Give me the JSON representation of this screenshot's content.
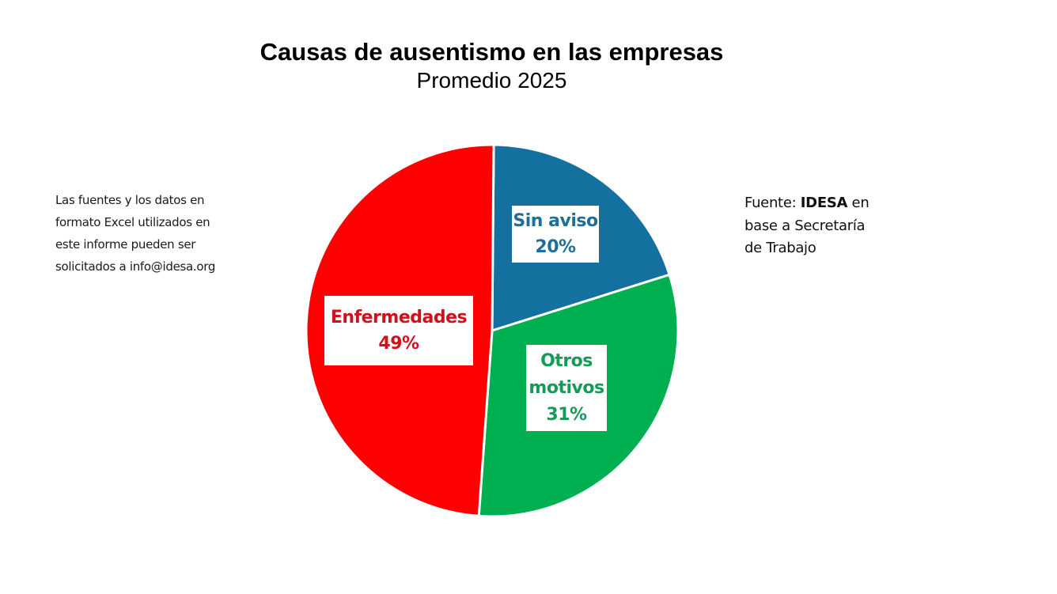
{
  "header": {
    "title": "Causas de ausentismo en las empresas",
    "subtitle": "Promedio 2025"
  },
  "note": {
    "lines": [
      "Las fuentes y los datos en",
      "formato Excel utilizados en",
      "este informe pueden ser",
      "solicitados a info@idesa.org"
    ]
  },
  "source": {
    "prefix": "Fuente: ",
    "brand": "IDESA",
    "suffix": " en",
    "line2": "base a Secretaría",
    "line3": "de Trabajo"
  },
  "labels": {
    "enfermedades": {
      "line1": "Enfermedades",
      "line2": "49%",
      "color": "#D0111B"
    },
    "sin_aviso": {
      "line1": "Sin aviso",
      "line2": "20%",
      "color": "#1F6E98"
    },
    "otros": {
      "line1": "Otros",
      "line2": "motivos",
      "line3": "31%",
      "color": "#169A58"
    }
  },
  "chart_data": {
    "type": "pie",
    "title": "Causas de ausentismo en las empresas",
    "subtitle": "Promedio 2025",
    "categories": [
      "Sin aviso",
      "Otros motivos",
      "Enfermedades"
    ],
    "values": [
      20,
      31,
      49
    ],
    "unit": "%",
    "colors": [
      "#13709F",
      "#00B050",
      "#FF0000"
    ],
    "start_angle_deg": 0,
    "direction": "clockwise",
    "legend": "none (data labels on slices)",
    "source": "Fuente: IDESA en base a Secretaría de Trabajo"
  }
}
